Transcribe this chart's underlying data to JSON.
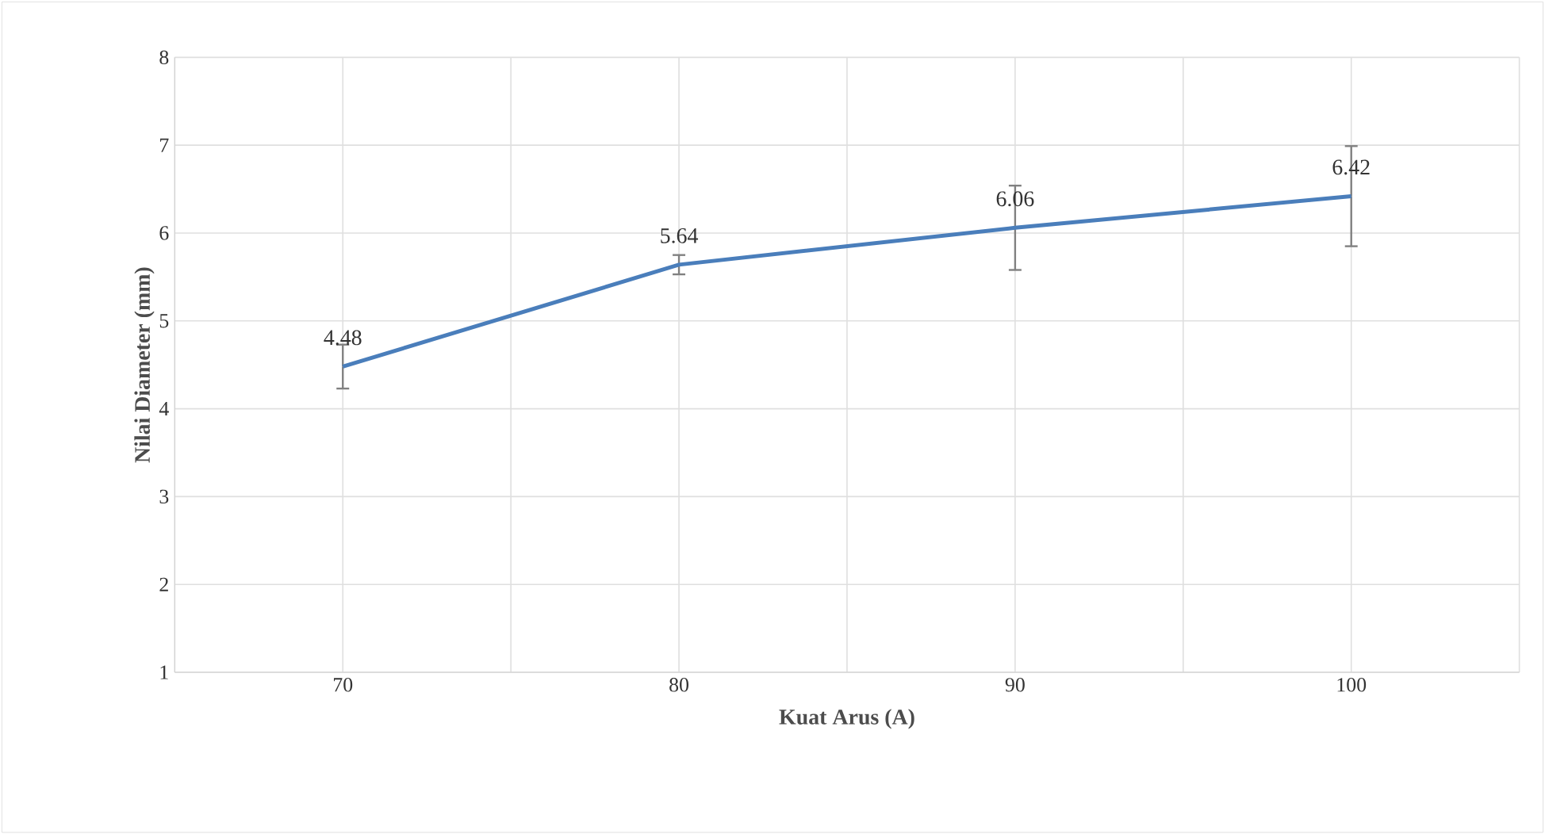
{
  "chart_data": {
    "type": "line",
    "xlabel": "Kuat Arus (A)",
    "ylabel": "Nilai Diameter (mm)",
    "categories": [
      "70",
      "80",
      "90",
      "100"
    ],
    "series": [
      {
        "color": "#4a7ebb",
        "values": [
          4.48,
          5.64,
          6.06,
          6.42
        ],
        "errors": [
          0.25,
          0.11,
          0.48,
          0.57
        ]
      }
    ],
    "ylim": [
      1,
      8
    ],
    "yticks": [
      1,
      2,
      3,
      4,
      5,
      6,
      7,
      8
    ],
    "grid": true,
    "data_labels": true,
    "marker": "none",
    "line_style": "solid"
  }
}
